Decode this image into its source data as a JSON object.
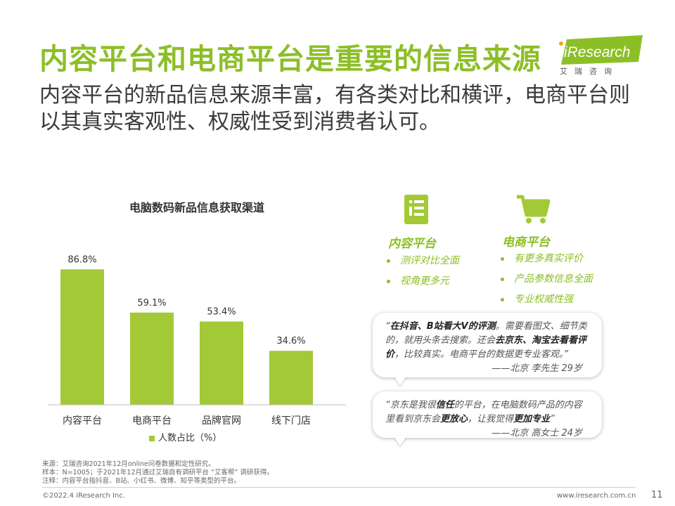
{
  "title": "内容平台和电商平台是重要的信息来源",
  "subtitle": "内容平台的新品信息来源丰富，有各类对比和横评，电商平台则以其真实客观性、权威性受到消费者认可。",
  "logo": {
    "brand": "iResearch",
    "cn": "艾瑞咨询",
    "accent": "#8cbf26"
  },
  "chart_data": {
    "type": "bar",
    "title": "电脑数码新品信息获取渠道",
    "categories": [
      "内容平台",
      "电商平台",
      "品牌官网",
      "线下门店"
    ],
    "series": [
      {
        "name": "人数占比（%）",
        "values": [
          86.8,
          59.1,
          53.4,
          34.6
        ]
      }
    ],
    "data_labels": [
      "86.8%",
      "59.1%",
      "53.4%",
      "34.6%"
    ],
    "ylim": [
      0,
      100
    ],
    "grid": false,
    "legend": "bottom",
    "bar_color": "#a3c936"
  },
  "content_platform": {
    "icon": "document-icon",
    "title": "内容平台",
    "bullets": [
      "测评对比全面",
      "视角更多元"
    ]
  },
  "ecommerce_platform": {
    "icon": "shopping-cart-icon",
    "title": "电商平台",
    "bullets": [
      "有更多真实评价",
      "产品参数信息全面",
      "专业权威性强"
    ]
  },
  "quotes": [
    {
      "p1": "“",
      "b1": "在抖音、B站看大V的评测",
      "p2": "。需要看图文、细节类的，就用头条去搜索。还会",
      "b2": "去京东、淘宝去看看评价",
      "p3": "，比较真实。电商平台的数据更专业客观。”",
      "signature": "——北京 李先生 29岁"
    },
    {
      "p1": "“京东是我很",
      "b1": "信任",
      "p2": "的平台，在电脑数码产品的内容里看到京东会",
      "b2": "更放心",
      "p3": "，让我觉得",
      "b3": "更加专业",
      "p4": "”",
      "signature": "——北京 高女士 24岁"
    }
  ],
  "footnotes": [
    "来源：艾瑞咨询2021年12月online问卷数据和定性研究。",
    "样本：N=1005；于2021年12月通过艾瑞自有调研平台 “艾客帮” 调研获得。",
    "注释：内容平台指抖音、B站、小红书、微博、知乎等类型的平台。"
  ],
  "footer": {
    "copyright": "©2022.4 iResearch Inc.",
    "website": "www.iresearch.com.cn",
    "page": "11"
  }
}
